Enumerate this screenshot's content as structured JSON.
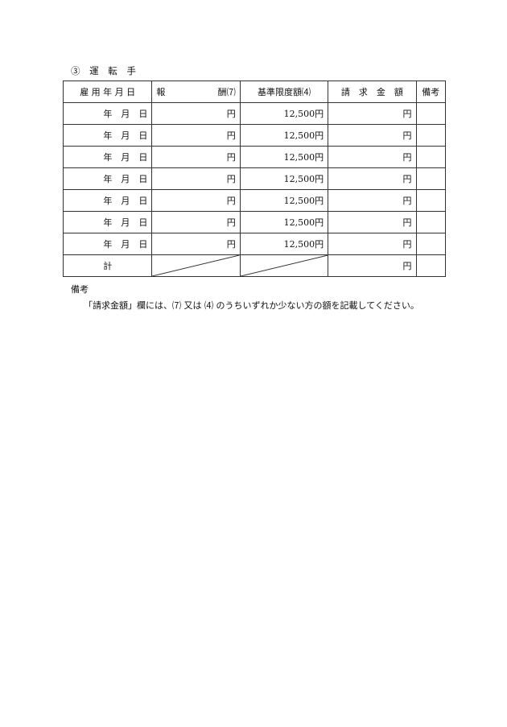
{
  "section_title": "③ 運 転 手",
  "table": {
    "headers": [
      "雇 用 年 月 日",
      "報　　酬⑺",
      "基準限度額⑷",
      "請　求　金　額",
      "備考"
    ],
    "header_reward_left": "報",
    "header_reward_right": "酬⑺",
    "rows": [
      {
        "date": "年　月　日",
        "reward": "円",
        "limit": "12,500円",
        "claim": "円",
        "note": ""
      },
      {
        "date": "年　月　日",
        "reward": "円",
        "limit": "12,500円",
        "claim": "円",
        "note": ""
      },
      {
        "date": "年　月　日",
        "reward": "円",
        "limit": "12,500円",
        "claim": "円",
        "note": ""
      },
      {
        "date": "年　月　日",
        "reward": "円",
        "limit": "12,500円",
        "claim": "円",
        "note": ""
      },
      {
        "date": "年　月　日",
        "reward": "円",
        "limit": "12,500円",
        "claim": "円",
        "note": ""
      },
      {
        "date": "年　月　日",
        "reward": "円",
        "limit": "12,500円",
        "claim": "円",
        "note": ""
      },
      {
        "date": "年　月　日",
        "reward": "円",
        "limit": "12,500円",
        "claim": "円",
        "note": ""
      }
    ],
    "total": {
      "label": "計",
      "claim": "円"
    }
  },
  "remarks": {
    "heading": "備考",
    "text": "「請求金額」欄には、⑺ 又は ⑷ のうちいずれか少ない方の額を記載してください。"
  }
}
